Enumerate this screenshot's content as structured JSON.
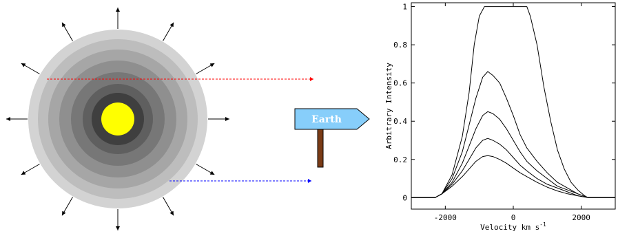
{
  "diagram": {
    "star_shells": [
      "#d3d3d3",
      "#bdbdbd",
      "#a6a6a6",
      "#8f8f8f",
      "#777777",
      "#5f5f5f",
      "#3f3f3f"
    ],
    "core_color": "#ffff00",
    "sightline_red": "#ff0000",
    "sightline_blue": "#0000ff",
    "outflow_arrow_count": 12,
    "sign": {
      "label": "Earth",
      "board_color": "#87cefa",
      "post_color": "#7a3b16"
    }
  },
  "chart_data": {
    "type": "line",
    "xlabel": "Velocity km s",
    "xlabel_superscript": "-1",
    "ylabel": "Arbitrary Intensity",
    "xlim": [
      -3000,
      3000
    ],
    "ylim": [
      -0.06,
      1.02
    ],
    "x_ticks": [
      -2000,
      0,
      2000
    ],
    "x_tick_labels": [
      "-2000",
      "0",
      "2000"
    ],
    "y_ticks": [
      0,
      0.2,
      0.4,
      0.6,
      0.8,
      1.0
    ],
    "y_tick_labels": [
      "0",
      "0.2",
      "0.4",
      "0.6",
      "0.8",
      "1"
    ],
    "grid": false,
    "series": [
      {
        "peak": 1.0,
        "points": [
          [
            -3000,
            0
          ],
          [
            -2300,
            0
          ],
          [
            -2100,
            0.02
          ],
          [
            -1800,
            0.12
          ],
          [
            -1500,
            0.32
          ],
          [
            -1300,
            0.55
          ],
          [
            -1150,
            0.8
          ],
          [
            -1000,
            0.95
          ],
          [
            -850,
            1.0
          ],
          [
            400,
            1.0
          ],
          [
            500,
            0.95
          ],
          [
            700,
            0.8
          ],
          [
            900,
            0.58
          ],
          [
            1100,
            0.4
          ],
          [
            1300,
            0.25
          ],
          [
            1500,
            0.15
          ],
          [
            1700,
            0.08
          ],
          [
            1900,
            0.04
          ],
          [
            2100,
            0.01
          ],
          [
            2200,
            0
          ],
          [
            3000,
            0
          ]
        ]
      },
      {
        "peak": 0.66,
        "points": [
          [
            -3000,
            0
          ],
          [
            -2300,
            0
          ],
          [
            -2100,
            0.02
          ],
          [
            -1800,
            0.1
          ],
          [
            -1500,
            0.24
          ],
          [
            -1300,
            0.38
          ],
          [
            -1100,
            0.52
          ],
          [
            -900,
            0.63
          ],
          [
            -750,
            0.66
          ],
          [
            -600,
            0.64
          ],
          [
            -400,
            0.6
          ],
          [
            -200,
            0.52
          ],
          [
            0,
            0.43
          ],
          [
            200,
            0.33
          ],
          [
            400,
            0.26
          ],
          [
            700,
            0.19
          ],
          [
            1000,
            0.13
          ],
          [
            1300,
            0.08
          ],
          [
            1600,
            0.05
          ],
          [
            1900,
            0.02
          ],
          [
            2200,
            0
          ],
          [
            3000,
            0
          ]
        ]
      },
      {
        "peak": 0.45,
        "points": [
          [
            -3000,
            0
          ],
          [
            -2300,
            0
          ],
          [
            -2100,
            0.02
          ],
          [
            -1800,
            0.08
          ],
          [
            -1500,
            0.18
          ],
          [
            -1300,
            0.27
          ],
          [
            -1100,
            0.36
          ],
          [
            -900,
            0.43
          ],
          [
            -750,
            0.45
          ],
          [
            -600,
            0.44
          ],
          [
            -400,
            0.41
          ],
          [
            -200,
            0.36
          ],
          [
            0,
            0.3
          ],
          [
            200,
            0.24
          ],
          [
            400,
            0.19
          ],
          [
            700,
            0.14
          ],
          [
            1000,
            0.1
          ],
          [
            1300,
            0.06
          ],
          [
            1600,
            0.04
          ],
          [
            1900,
            0.02
          ],
          [
            2200,
            0
          ],
          [
            3000,
            0
          ]
        ]
      },
      {
        "peak": 0.31,
        "points": [
          [
            -3000,
            0
          ],
          [
            -2300,
            0
          ],
          [
            -2100,
            0.02
          ],
          [
            -1800,
            0.07
          ],
          [
            -1500,
            0.14
          ],
          [
            -1300,
            0.2
          ],
          [
            -1100,
            0.26
          ],
          [
            -900,
            0.3
          ],
          [
            -750,
            0.31
          ],
          [
            -600,
            0.3
          ],
          [
            -400,
            0.28
          ],
          [
            -200,
            0.25
          ],
          [
            0,
            0.21
          ],
          [
            200,
            0.17
          ],
          [
            400,
            0.14
          ],
          [
            700,
            0.1
          ],
          [
            1000,
            0.07
          ],
          [
            1300,
            0.05
          ],
          [
            1600,
            0.03
          ],
          [
            1900,
            0.01
          ],
          [
            2200,
            0
          ],
          [
            3000,
            0
          ]
        ]
      },
      {
        "peak": 0.22,
        "points": [
          [
            -3000,
            0
          ],
          [
            -2300,
            0
          ],
          [
            -2100,
            0.02
          ],
          [
            -1800,
            0.06
          ],
          [
            -1500,
            0.11
          ],
          [
            -1300,
            0.15
          ],
          [
            -1100,
            0.19
          ],
          [
            -900,
            0.215
          ],
          [
            -750,
            0.22
          ],
          [
            -600,
            0.215
          ],
          [
            -400,
            0.2
          ],
          [
            -200,
            0.18
          ],
          [
            0,
            0.155
          ],
          [
            200,
            0.13
          ],
          [
            400,
            0.11
          ],
          [
            700,
            0.08
          ],
          [
            1000,
            0.055
          ],
          [
            1300,
            0.035
          ],
          [
            1600,
            0.02
          ],
          [
            1900,
            0.01
          ],
          [
            2200,
            0
          ],
          [
            3000,
            0
          ]
        ]
      }
    ]
  }
}
